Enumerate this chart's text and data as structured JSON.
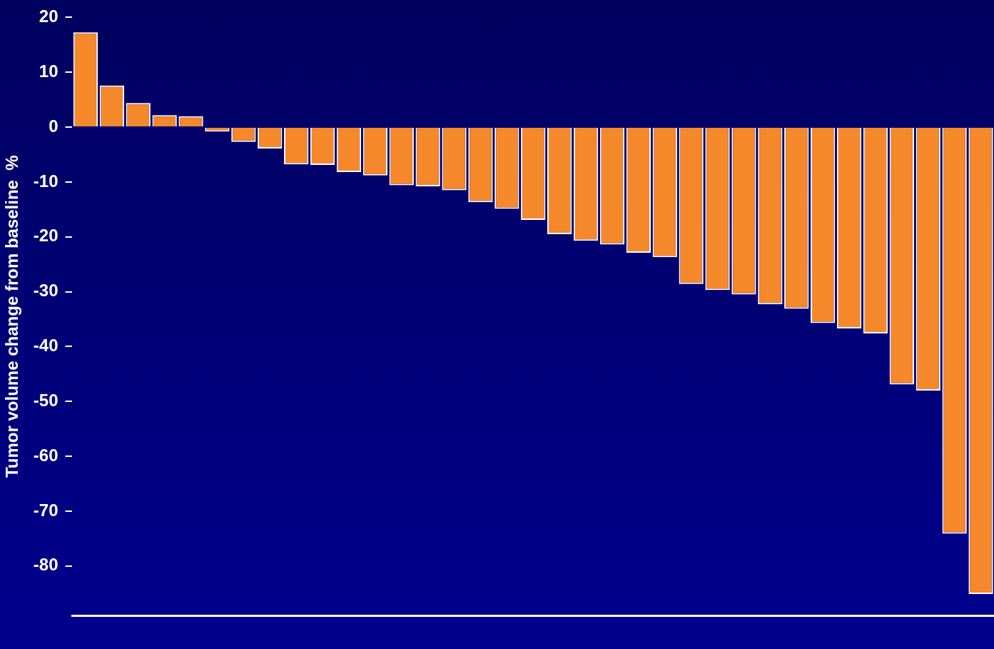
{
  "chart_data": {
    "type": "bar",
    "ylabel": "Tumor volume change from baseline  %",
    "categories": [
      null,
      null,
      null,
      null,
      null,
      null,
      null,
      null,
      null,
      null,
      null,
      null,
      null,
      null,
      null,
      null,
      null,
      null,
      null,
      null,
      null,
      null,
      null,
      null,
      null,
      null,
      null,
      null,
      null,
      null,
      null,
      null,
      null,
      null,
      null
    ],
    "values": [
      17.3,
      7.6,
      4.4,
      2.2,
      2.0,
      -0.8,
      -2.7,
      -3.9,
      -6.8,
      -6.9,
      -8.2,
      -8.8,
      -10.6,
      -10.8,
      -11.5,
      -13.7,
      -14.9,
      -16.9,
      -19.5,
      -20.7,
      -21.4,
      -22.9,
      -23.7,
      -28.6,
      -29.7,
      -30.5,
      -32.3,
      -33.1,
      -35.7,
      -36.7,
      -37.6,
      -46.9,
      -48.0,
      -74.1,
      -85.1
    ],
    "color": "#f5882a",
    "ylim": [
      -89,
      20
    ],
    "yticks": [
      20,
      10,
      0,
      -10,
      -20,
      -30,
      -40,
      -50,
      -60,
      -70,
      -80
    ],
    "grid": false,
    "legend": false
  }
}
